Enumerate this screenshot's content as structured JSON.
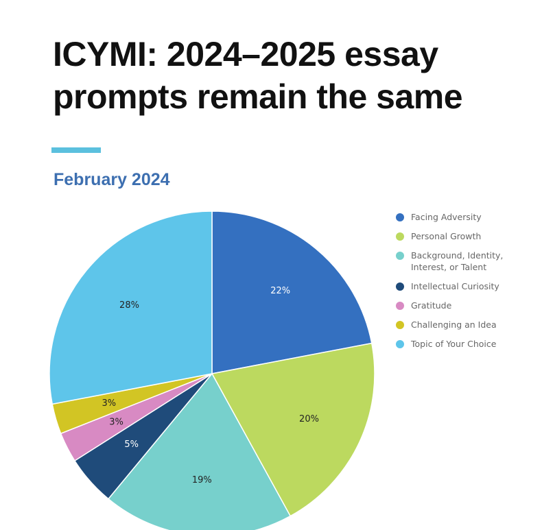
{
  "headline": {
    "line1": "ICYMI: 2024–2025 essay",
    "line2": "prompts remain the same"
  },
  "chart_data": {
    "type": "pie",
    "title": "February 2024",
    "legend_position": "right",
    "slices": [
      {
        "label": "Facing Adversity",
        "value": 22,
        "display": "22%",
        "color": "#3470c0",
        "label_color": "#ffffff"
      },
      {
        "label": "Personal Growth",
        "value": 20,
        "display": "20%",
        "color": "#bcd95f",
        "label_color": "#222222"
      },
      {
        "label": "Background, Identity, Interest, or Talent",
        "legend_lines": [
          "Background, Identity,",
          "Interest, or Talent"
        ],
        "value": 19,
        "display": "19%",
        "color": "#77d0cc",
        "label_color": "#222222"
      },
      {
        "label": "Intellectual Curiosity",
        "value": 5,
        "display": "5%",
        "color": "#1f4b7a",
        "label_color": "#ffffff"
      },
      {
        "label": "Gratitude",
        "value": 3,
        "display": "3%",
        "color": "#d88ac3",
        "label_color": "#222222"
      },
      {
        "label": "Challenging an Idea",
        "value": 3,
        "display": "3%",
        "color": "#d2c524",
        "label_color": "#222222"
      },
      {
        "label": "Topic of Your Choice",
        "value": 28,
        "display": "28%",
        "color": "#5ec5ea",
        "label_color": "#222222"
      }
    ]
  }
}
